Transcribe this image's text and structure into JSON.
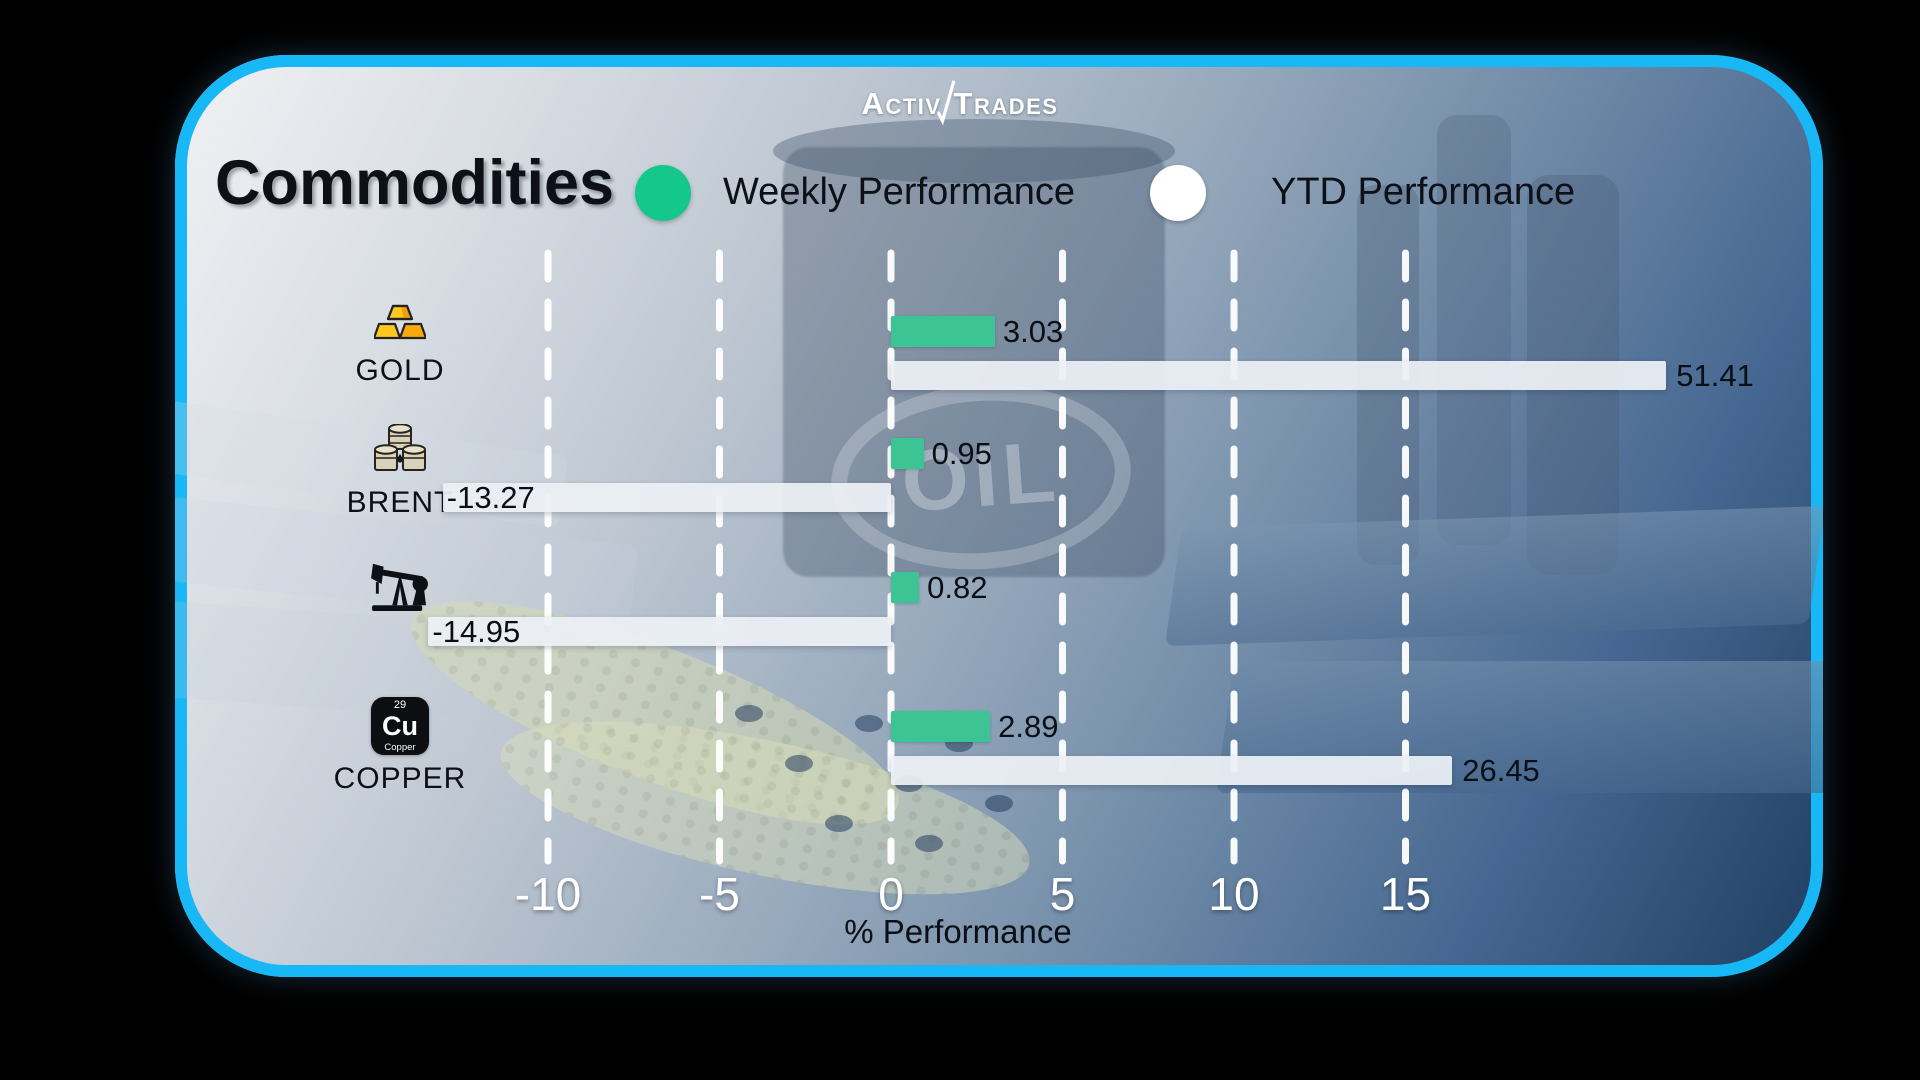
{
  "header": {
    "title": "Commodities"
  },
  "logo": {
    "word1": "Activ",
    "word2": "Trades"
  },
  "legend": {
    "weekly": {
      "label": "Weekly Performance",
      "color": "#14C88C"
    },
    "ytd": {
      "label": "YTD Performance",
      "color": "#FFFFFF"
    }
  },
  "card": {
    "border_color": "#18B7F5"
  },
  "background": {
    "oil_label": "OIL"
  },
  "copper_tile": {
    "number": "29",
    "symbol": "Cu",
    "name": "Copper"
  },
  "chart_data": {
    "type": "bar",
    "orientation": "horizontal",
    "title": "Commodities",
    "xlabel": "% Performance",
    "x_ticks": [
      -10,
      -5,
      0,
      5,
      10,
      15
    ],
    "xlim": [
      -13,
      19
    ],
    "grid": "dashed-vertical-white",
    "categories": [
      "GOLD",
      "BRENT",
      "",
      "COPPER"
    ],
    "category_icons": [
      "gold-bars-icon",
      "oil-drums-icon",
      "pumpjack-icon",
      "copper-element-icon"
    ],
    "series": [
      {
        "name": "Weekly Performance",
        "color": "#3CC494",
        "values": [
          3.03,
          0.95,
          0.82,
          2.89
        ]
      },
      {
        "name": "YTD Performance",
        "color": "#EDF1F6",
        "values": [
          51.41,
          -13.27,
          -14.95,
          26.45
        ]
      }
    ]
  }
}
